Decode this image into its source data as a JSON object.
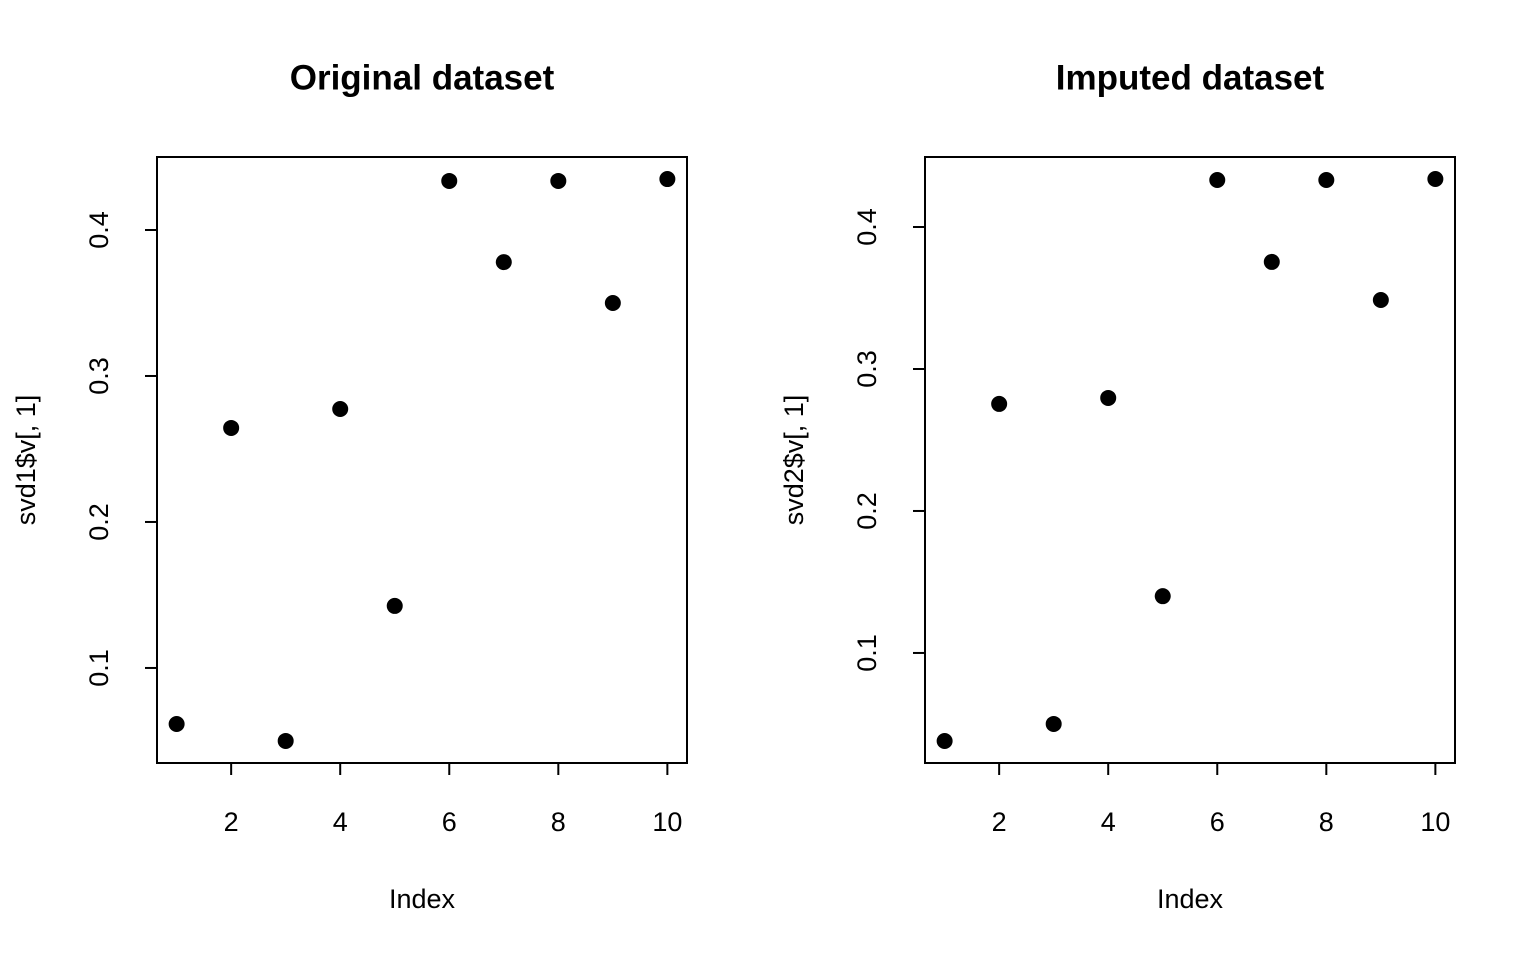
{
  "chart_data": [
    {
      "type": "scatter",
      "title": "Original dataset",
      "xlabel": "Index",
      "ylabel": "svd1$v[, 1]",
      "x": [
        1,
        2,
        3,
        4,
        5,
        6,
        7,
        8,
        9,
        10
      ],
      "values": [
        0.0616,
        0.2644,
        0.05,
        0.2774,
        0.1425,
        0.4336,
        0.378,
        0.4336,
        0.35,
        0.4349
      ],
      "color": "#000000",
      "xlim": [
        0.64,
        10.36
      ],
      "ylim": [
        0.0349,
        0.45
      ],
      "xticks": [
        2,
        4,
        6,
        8,
        10
      ],
      "yticks": [
        0.1,
        0.2,
        0.3,
        0.4
      ]
    },
    {
      "type": "scatter",
      "title": "Imputed dataset",
      "xlabel": "Index",
      "ylabel": "svd2$v[, 1]",
      "x": [
        1,
        2,
        3,
        4,
        5,
        6,
        7,
        8,
        9,
        10
      ],
      "values": [
        0.038,
        0.2754,
        0.05,
        0.2796,
        0.14,
        0.4331,
        0.3754,
        0.4331,
        0.3486,
        0.4338
      ],
      "color": "#000000",
      "xlim": [
        0.64,
        10.36
      ],
      "ylim": [
        0.0225,
        0.4493
      ],
      "xticks": [
        2,
        4,
        6,
        8,
        10
      ],
      "yticks": [
        0.1,
        0.2,
        0.3,
        0.4
      ]
    }
  ]
}
